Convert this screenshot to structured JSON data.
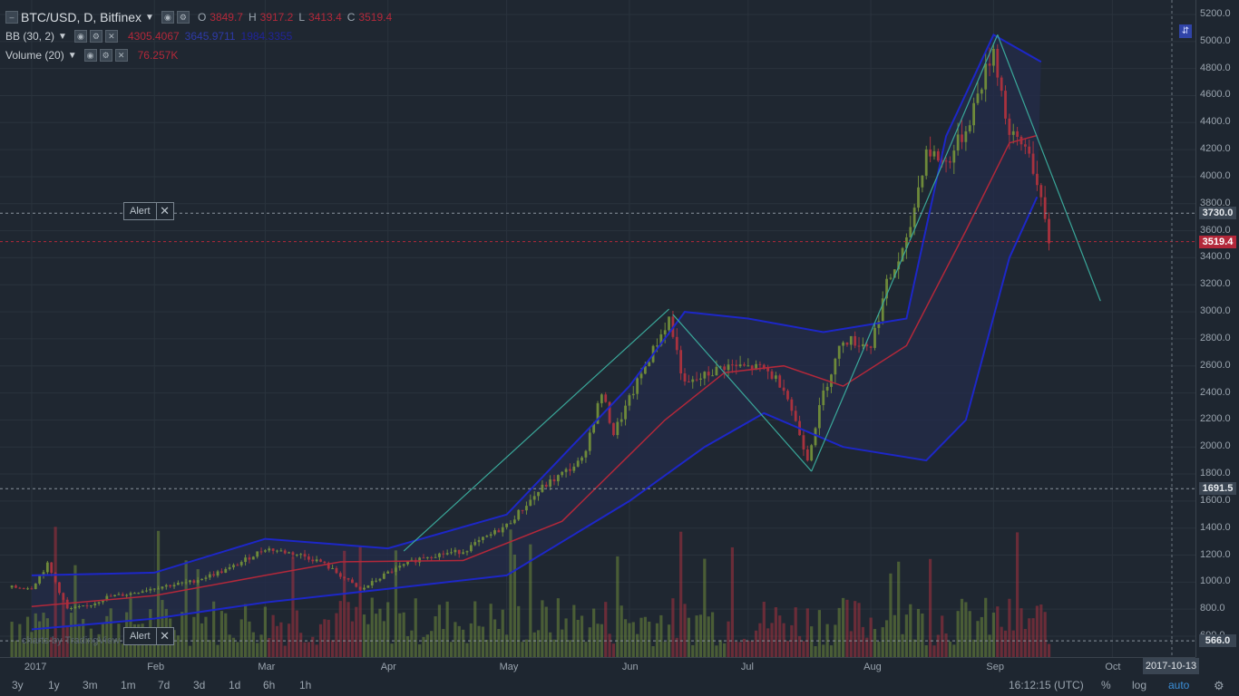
{
  "header": {
    "symbol_title": "BTC/USD, D, Bitfinex",
    "ohlc": [
      {
        "label": "O",
        "value": "3849.7"
      },
      {
        "label": "H",
        "value": "3917.2"
      },
      {
        "label": "L",
        "value": "3413.4"
      },
      {
        "label": "C",
        "value": "3519.4"
      }
    ]
  },
  "indicators": [
    {
      "name": "BB (30, 2)",
      "values": [
        "4305.4067",
        "3645.9711",
        "1984.3355"
      ],
      "colors": [
        "#b3283a",
        "#2e3aa8",
        "#20249a"
      ]
    },
    {
      "name": "Volume (20)",
      "values": [
        "76.257K"
      ],
      "colors": [
        "#b3283a"
      ]
    }
  ],
  "y_axis": {
    "ticks": [
      "5200.0",
      "5000.0",
      "4800.0",
      "4600.0",
      "4400.0",
      "4200.0",
      "4000.0",
      "3800.0",
      "3600.0",
      "3400.0",
      "3200.0",
      "3000.0",
      "2800.0",
      "2600.0",
      "2400.0",
      "2200.0",
      "2000.0",
      "1800.0",
      "1600.0",
      "1400.0",
      "1200.0",
      "1000.0",
      "800.0",
      "600.0"
    ],
    "tags": [
      {
        "value": "3730.0",
        "kind": "alert"
      },
      {
        "value": "3519.4",
        "kind": "last-price"
      },
      {
        "value": "1691.5",
        "kind": "crosshair"
      },
      {
        "value": "566.0",
        "kind": "alert"
      }
    ]
  },
  "x_axis": {
    "ticks": [
      "2017",
      "Feb",
      "Mar",
      "Apr",
      "May",
      "Jun",
      "Jul",
      "Aug",
      "Sep",
      "Oct"
    ],
    "cursor_date": "2017-10-13"
  },
  "alerts": [
    {
      "label": "Alert",
      "price": "3730.0"
    },
    {
      "label": "Alert",
      "price": "566.0"
    }
  ],
  "watermark": "charts by TradingView",
  "toolbar": {
    "timeframes": [
      "3y",
      "1y",
      "3m",
      "1m",
      "7d",
      "3d",
      "1d",
      "6h",
      "1h"
    ],
    "clock": "16:12:15 (UTC)",
    "percent": "%",
    "log": "log",
    "auto": "auto"
  },
  "colors": {
    "background": "#1f2731",
    "grid": "#2a333d",
    "up_candle": "#6e8a3a",
    "down_candle": "#a8323e",
    "bb_upper": "#1d27c8",
    "bb_middle": "#b3283a",
    "bb_fill": "#232c48",
    "trendline": "#3aa89a",
    "last_price_tag": "#b3283a",
    "tag_bg": "#3a4552",
    "auto_active": "#3b8fd9"
  },
  "chart_data": {
    "type": "candlestick",
    "price_series": [
      [
        "2017-01-01",
        960
      ],
      [
        "2017-01-05",
        1130
      ],
      [
        "2017-01-10",
        800
      ],
      [
        "2017-01-15",
        820
      ],
      [
        "2017-01-20",
        890
      ],
      [
        "2017-01-25",
        910
      ],
      [
        "2017-02-01",
        960
      ],
      [
        "2017-02-10",
        1000
      ],
      [
        "2017-02-20",
        1100
      ],
      [
        "2017-03-01",
        1250
      ],
      [
        "2017-03-10",
        1200
      ],
      [
        "2017-03-15",
        1150
      ],
      [
        "2017-03-20",
        1050
      ],
      [
        "2017-03-25",
        940
      ],
      [
        "2017-04-01",
        1070
      ],
      [
        "2017-04-10",
        1190
      ],
      [
        "2017-04-20",
        1230
      ],
      [
        "2017-05-01",
        1420
      ],
      [
        "2017-05-10",
        1700
      ],
      [
        "2017-05-20",
        1900
      ],
      [
        "2017-05-25",
        2400
      ],
      [
        "2017-05-28",
        2100
      ],
      [
        "2017-06-05",
        2600
      ],
      [
        "2017-06-11",
        2950
      ],
      [
        "2017-06-15",
        2450
      ],
      [
        "2017-06-25",
        2600
      ],
      [
        "2017-07-05",
        2580
      ],
      [
        "2017-07-10",
        2450
      ],
      [
        "2017-07-16",
        1920
      ],
      [
        "2017-07-20",
        2400
      ],
      [
        "2017-07-25",
        2800
      ],
      [
        "2017-08-01",
        2750
      ],
      [
        "2017-08-05",
        3200
      ],
      [
        "2017-08-10",
        3500
      ],
      [
        "2017-08-15",
        4200
      ],
      [
        "2017-08-20",
        4100
      ],
      [
        "2017-08-25",
        4350
      ],
      [
        "2017-09-01",
        4950
      ],
      [
        "2017-09-05",
        4300
      ],
      [
        "2017-09-10",
        4200
      ],
      [
        "2017-09-15",
        3520
      ]
    ],
    "bb_middle": [
      [
        "2017-01-01",
        820
      ],
      [
        "2017-02-01",
        900
      ],
      [
        "2017-03-01",
        1050
      ],
      [
        "2017-03-20",
        1150
      ],
      [
        "2017-04-20",
        1160
      ],
      [
        "2017-05-15",
        1450
      ],
      [
        "2017-06-10",
        2200
      ],
      [
        "2017-06-25",
        2550
      ],
      [
        "2017-07-10",
        2600
      ],
      [
        "2017-07-25",
        2450
      ],
      [
        "2017-08-10",
        2750
      ],
      [
        "2017-08-25",
        3600
      ],
      [
        "2017-09-05",
        4250
      ],
      [
        "2017-09-12",
        4305
      ]
    ],
    "bb_upper": [
      [
        "2017-01-01",
        1050
      ],
      [
        "2017-02-01",
        1070
      ],
      [
        "2017-03-01",
        1320
      ],
      [
        "2017-04-01",
        1250
      ],
      [
        "2017-05-01",
        1500
      ],
      [
        "2017-06-01",
        2450
      ],
      [
        "2017-06-15",
        3000
      ],
      [
        "2017-07-01",
        2950
      ],
      [
        "2017-07-20",
        2850
      ],
      [
        "2017-08-10",
        2950
      ],
      [
        "2017-08-20",
        4300
      ],
      [
        "2017-09-01",
        5050
      ],
      [
        "2017-09-13",
        4850
      ]
    ],
    "bb_lower": [
      [
        "2017-01-01",
        650
      ],
      [
        "2017-02-01",
        730
      ],
      [
        "2017-03-01",
        850
      ],
      [
        "2017-04-01",
        950
      ],
      [
        "2017-05-01",
        1050
      ],
      [
        "2017-06-01",
        1600
      ],
      [
        "2017-06-20",
        2000
      ],
      [
        "2017-07-05",
        2250
      ],
      [
        "2017-07-25",
        2000
      ],
      [
        "2017-08-15",
        1900
      ],
      [
        "2017-08-25",
        2200
      ],
      [
        "2017-09-05",
        3400
      ],
      [
        "2017-09-12",
        3850
      ]
    ],
    "trendlines": [
      [
        [
          "2017-04-05",
          1230
        ],
        [
          "2017-06-11",
          3020
        ]
      ],
      [
        [
          "2017-06-12",
          2980
        ],
        [
          "2017-07-17",
          1820
        ]
      ],
      [
        [
          "2017-07-17",
          1820
        ],
        [
          "2017-09-02",
          5050
        ]
      ],
      [
        [
          "2017-09-02",
          5050
        ],
        [
          "2017-09-28",
          3080
        ]
      ]
    ],
    "volume": "bars shown at bottom, mixed up/down colors",
    "ylim": [
      550,
      5250
    ],
    "xlim": [
      "2016-12-24",
      "2017-10-22"
    ]
  }
}
